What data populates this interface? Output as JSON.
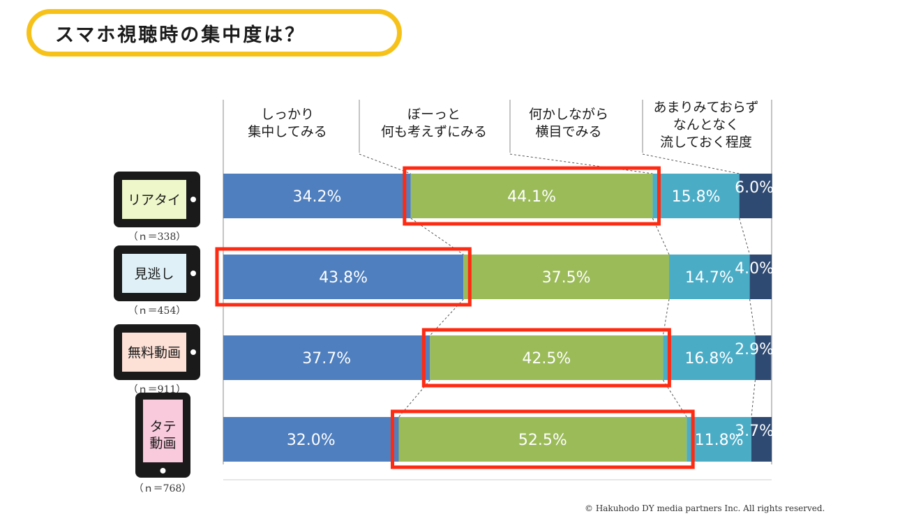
{
  "page": {
    "title": "スマホ視聴時の集中度は？",
    "copyright": "© Hakuhodo DY media partners Inc. All rights reserved."
  },
  "colors": {
    "accent_border": "#f6c21a",
    "highlight": "#ff2a12",
    "series": [
      "#4f7fbe",
      "#9bbb59",
      "#4bacc6",
      "#2e4a72"
    ]
  },
  "chart_data": {
    "type": "bar",
    "orientation": "horizontal",
    "stacked": true,
    "title": "スマホ視聴時の集中度は？",
    "xlim": [
      0,
      100
    ],
    "unit": "%",
    "series": [
      {
        "name": "しっかり集中してみる",
        "label_lines": [
          "しっかり",
          "集中してみる"
        ],
        "values": [
          34.2,
          43.8,
          37.7,
          32.0
        ]
      },
      {
        "name": "ぼーっと何も考えずにみる",
        "label_lines": [
          "ぼーっと",
          "何も考えずにみる"
        ],
        "values": [
          44.1,
          37.5,
          42.5,
          52.5
        ]
      },
      {
        "name": "何かしながら横目でみる",
        "label_lines": [
          "何かしながら",
          "横目でみる"
        ],
        "values": [
          15.8,
          14.7,
          16.8,
          11.8
        ]
      },
      {
        "name": "あまりみておらずなんとなく流しておく程度",
        "label_lines": [
          "あまりみておらず",
          "なんとなく",
          "流しておく程度"
        ],
        "values": [
          6.0,
          4.0,
          2.9,
          3.7
        ]
      }
    ],
    "categories": [
      {
        "label_lines": [
          "リアタイ"
        ],
        "n": "（ｎ＝338）",
        "device": "landscape",
        "screen_color": "#eef7c9",
        "highlight_series": 1
      },
      {
        "label_lines": [
          "見逃し"
        ],
        "n": "（ｎ＝454）",
        "device": "landscape",
        "screen_color": "#dff1f7",
        "highlight_series": 0
      },
      {
        "label_lines": [
          "無料動画"
        ],
        "n": "（ｎ＝911）",
        "device": "landscape",
        "screen_color": "#fde1d7",
        "highlight_series": 1
      },
      {
        "label_lines": [
          "タテ",
          "動画"
        ],
        "n": "（ｎ＝768）",
        "device": "portrait",
        "screen_color": "#f9c9dc",
        "highlight_series": 1
      }
    ]
  }
}
